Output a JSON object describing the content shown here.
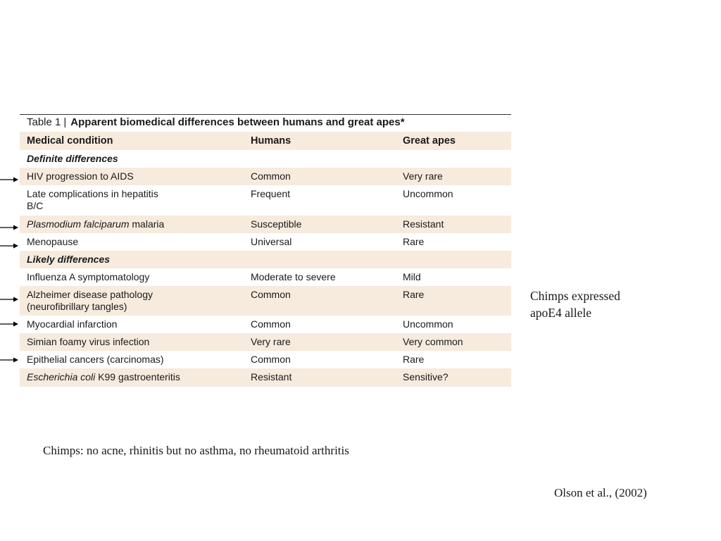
{
  "table": {
    "caption_prefix": "Table 1",
    "caption_separator": "|",
    "caption_title": "Apparent biomedical differences between humans and great apes*",
    "headers": [
      "Medical condition",
      "Humans",
      "Great apes"
    ],
    "section_definite": "Definite differences",
    "section_likely": "Likely differences",
    "rows": [
      {
        "condition": "HIV progression to AIDS",
        "humans": "Common",
        "apes": "Very rare"
      },
      {
        "condition_line1": "Late complications in hepatitis",
        "condition_line2": "B/C",
        "humans": "Frequent",
        "apes": "Uncommon"
      },
      {
        "condition_italic": "Plasmodium falciparum",
        "condition_rest": " malaria",
        "humans": "Susceptible",
        "apes": "Resistant"
      },
      {
        "condition": "Menopause",
        "humans": "Universal",
        "apes": "Rare"
      },
      {
        "condition": "Influenza A symptomatology",
        "humans": "Moderate to severe",
        "apes": "Mild"
      },
      {
        "condition_line1": "Alzheimer disease pathology",
        "condition_line2": "(neurofibrillary tangles)",
        "humans": "Common",
        "apes": "Rare"
      },
      {
        "condition": "Myocardial infarction",
        "humans": "Common",
        "apes": "Uncommon"
      },
      {
        "condition": "Simian foamy virus infection",
        "humans": "Very rare",
        "apes": "Very common"
      },
      {
        "condition": "Epithelial cancers (carcinomas)",
        "humans": "Common",
        "apes": "Rare"
      },
      {
        "condition_italic": "Escherichia coli",
        "condition_rest": " K99 gastroenteritis",
        "humans": "Resistant",
        "apes": "Sensitive?"
      }
    ]
  },
  "side_note": {
    "line1": "Chimps expressed",
    "line2": "apoE4 allele"
  },
  "bottom_note": "Chimps: no acne, rhinitis but no asthma, no rheumatoid arthritis",
  "citation": "Olson et al., (2002)",
  "colors": {
    "row_shade": "#f6ebdd",
    "text": "#1a1a1a",
    "arrow": "#000000"
  },
  "arrow_icon": "arrow-right-icon"
}
